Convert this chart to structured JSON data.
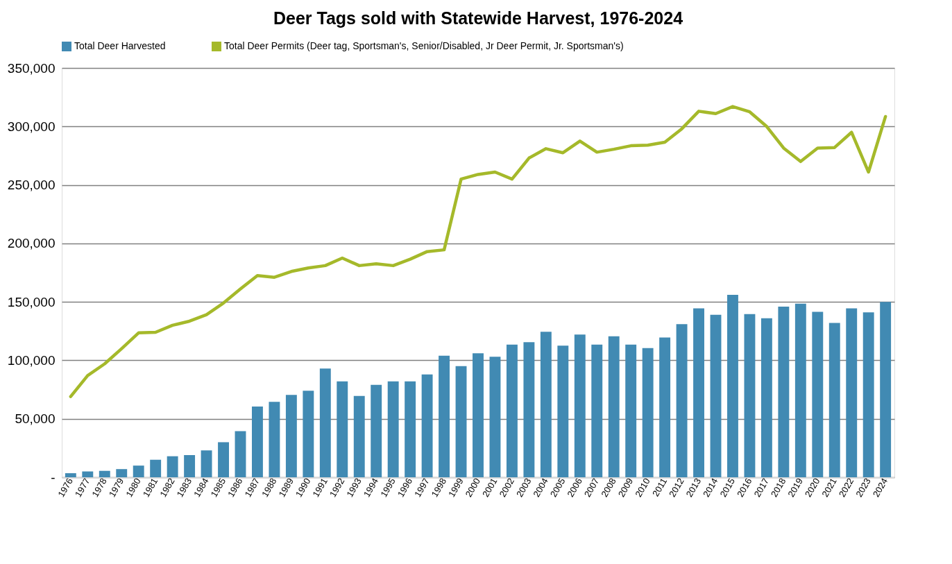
{
  "chart_data": {
    "type": "bar",
    "title": "Deer Tags sold with Statewide Harvest, 1976-2024",
    "categories": [
      "1976",
      "1977",
      "1978",
      "1979",
      "1980",
      "1981",
      "1982",
      "1983",
      "1984",
      "1985",
      "1986",
      "1987",
      "1988",
      "1989",
      "1990",
      "1991",
      "1992",
      "1993",
      "1994",
      "1995",
      "1996",
      "1997",
      "1998",
      "1999",
      "2000",
      "2001",
      "2002",
      "2003",
      "2004",
      "2005",
      "2006",
      "2007",
      "2008",
      "2009",
      "2010",
      "2011",
      "2012",
      "2013",
      "2014",
      "2015",
      "2016",
      "2017",
      "2018",
      "2019",
      "2020",
      "2021",
      "2022",
      "2023",
      "2024"
    ],
    "series": [
      {
        "name": "Total Deer Harvested",
        "color": "#418ab3",
        "values": [
          3500,
          5000,
          5500,
          7000,
          10000,
          15000,
          18000,
          19000,
          23000,
          30000,
          39500,
          60500,
          64500,
          70500,
          74000,
          93000,
          82000,
          69500,
          79000,
          82000,
          82000,
          88000,
          104000,
          95000,
          106000,
          103000,
          113500,
          115500,
          124500,
          112500,
          122000,
          113500,
          120500,
          113500,
          110500,
          119500,
          131000,
          144500,
          139000,
          156000,
          139500,
          136000,
          146000,
          148500,
          141500,
          132000,
          144500,
          141000,
          150000
        ]
      },
      {
        "name": "Total Deer Permits (Deer tag, Sportsman's, Senior/Disabled, Jr Deer Permit, Jr. Sportsman's)",
        "type": "line",
        "color": "#a5b92a",
        "values": [
          69000,
          87000,
          97000,
          110000,
          123500,
          124000,
          130000,
          133500,
          139000,
          149000,
          161000,
          172500,
          171000,
          176000,
          179000,
          181000,
          187500,
          181000,
          182500,
          181000,
          186500,
          193000,
          194500,
          255000,
          259000,
          261000,
          255000,
          273000,
          281000,
          277500,
          287500,
          278000,
          280500,
          283500,
          284000,
          286500,
          298000,
          313000,
          311000,
          317000,
          312500,
          300000,
          281500,
          270000,
          281500,
          282000,
          295000,
          261000,
          308500
        ]
      }
    ],
    "ylim": [
      0,
      350000
    ],
    "yticks": [
      {
        "value": 0,
        "label": "-"
      },
      {
        "value": 50000,
        "label": "50,000"
      },
      {
        "value": 100000,
        "label": "100,000"
      },
      {
        "value": 150000,
        "label": "150,000"
      },
      {
        "value": 200000,
        "label": "200,000"
      },
      {
        "value": 250000,
        "label": "250,000"
      },
      {
        "value": 300000,
        "label": "300,000"
      },
      {
        "value": 350000,
        "label": "350,000"
      }
    ],
    "grid": "y",
    "legend": "top"
  }
}
